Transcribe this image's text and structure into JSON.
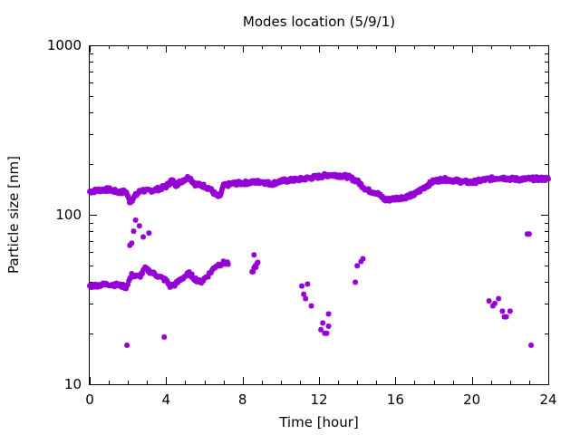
{
  "chart_data": {
    "type": "scatter",
    "title": "Modes location (5/9/1)",
    "xlabel": "Time [hour]",
    "ylabel": "Particle size [nm]",
    "xlim": [
      0,
      24
    ],
    "ylim": [
      10,
      1000
    ],
    "yscale": "log",
    "xticks": [
      0,
      4,
      8,
      12,
      16,
      20,
      24
    ],
    "yticks": [
      10,
      100,
      1000
    ],
    "grid": false,
    "legend": "none",
    "marker_color": "#9400D3",
    "series": [
      {
        "anchors_main": [
          [
            0,
            137
          ],
          [
            0.5,
            140
          ],
          [
            1,
            141
          ],
          [
            1.5,
            136
          ],
          [
            1.9,
            137
          ],
          [
            2.1,
            119
          ],
          [
            2.4,
            130
          ],
          [
            2.7,
            140
          ],
          [
            3,
            138
          ],
          [
            3.5,
            141
          ],
          [
            4,
            147
          ],
          [
            4.3,
            160
          ],
          [
            4.5,
            150
          ],
          [
            5,
            163
          ],
          [
            5.2,
            167
          ],
          [
            5.5,
            152
          ],
          [
            6,
            148
          ],
          [
            6.3,
            142
          ],
          [
            6.6,
            131
          ],
          [
            6.8,
            127
          ],
          [
            7,
            148
          ],
          [
            7.5,
            153
          ],
          [
            8,
            154
          ],
          [
            9,
            157
          ],
          [
            9.5,
            152
          ],
          [
            10,
            158
          ],
          [
            11,
            162
          ],
          [
            11.5,
            165
          ],
          [
            12,
            168
          ],
          [
            12.5,
            172
          ],
          [
            13,
            171
          ],
          [
            13.5,
            168
          ],
          [
            14,
            158
          ],
          [
            14.5,
            140
          ],
          [
            15,
            135
          ],
          [
            15.3,
            127
          ],
          [
            15.5,
            122
          ],
          [
            16,
            125
          ],
          [
            16.5,
            127
          ],
          [
            17,
            132
          ],
          [
            17.5,
            145
          ],
          [
            18,
            158
          ],
          [
            18.5,
            162
          ],
          [
            19,
            160
          ],
          [
            19.5,
            157
          ],
          [
            20,
            155
          ],
          [
            20.5,
            160
          ],
          [
            21,
            163
          ],
          [
            21.5,
            166
          ],
          [
            22,
            163
          ],
          [
            22.5,
            162
          ],
          [
            23,
            163
          ],
          [
            24,
            163
          ]
        ],
        "anchors_lower": [
          [
            0,
            38
          ],
          [
            0.5,
            38.5
          ],
          [
            1,
            39
          ],
          [
            1.5,
            38.5
          ],
          [
            1.9,
            37.5
          ],
          [
            2.2,
            44
          ],
          [
            2.6,
            43
          ],
          [
            2.9,
            48
          ],
          [
            3.2,
            46
          ],
          [
            3.5,
            44
          ],
          [
            4,
            41
          ],
          [
            4.2,
            38
          ],
          [
            4.5,
            39
          ],
          [
            4.8,
            42
          ],
          [
            5.2,
            45
          ],
          [
            5.5,
            42
          ],
          [
            5.8,
            40
          ],
          [
            6.2,
            44
          ],
          [
            6.6,
            50
          ],
          [
            7,
            52
          ],
          [
            7.2,
            52
          ],
          [
            8.5,
            45
          ],
          [
            8.7,
            50
          ],
          [
            8.8,
            52
          ]
        ],
        "extra_points": [
          [
            1.95,
            17
          ],
          [
            2.1,
            66
          ],
          [
            2.2,
            68
          ],
          [
            2.3,
            80
          ],
          [
            2.4,
            93
          ],
          [
            2.6,
            86
          ],
          [
            2.8,
            74
          ],
          [
            3.1,
            78
          ],
          [
            3.9,
            19
          ],
          [
            8.6,
            58
          ],
          [
            11.1,
            38
          ],
          [
            11.2,
            34
          ],
          [
            11.3,
            32
          ],
          [
            11.4,
            39
          ],
          [
            11.6,
            29
          ],
          [
            12.1,
            21
          ],
          [
            12.2,
            23
          ],
          [
            12.3,
            20
          ],
          [
            12.4,
            20
          ],
          [
            12.5,
            22
          ],
          [
            12.5,
            26
          ],
          [
            13.9,
            40
          ],
          [
            14.0,
            50
          ],
          [
            14.2,
            53
          ],
          [
            14.3,
            55
          ],
          [
            20.9,
            31
          ],
          [
            21.1,
            29
          ],
          [
            21.2,
            30
          ],
          [
            21.4,
            32
          ],
          [
            21.6,
            27
          ],
          [
            21.7,
            25
          ],
          [
            21.8,
            25
          ],
          [
            22.0,
            27
          ],
          [
            22.9,
            77
          ],
          [
            23.0,
            77
          ],
          [
            23.1,
            17
          ]
        ]
      }
    ]
  }
}
